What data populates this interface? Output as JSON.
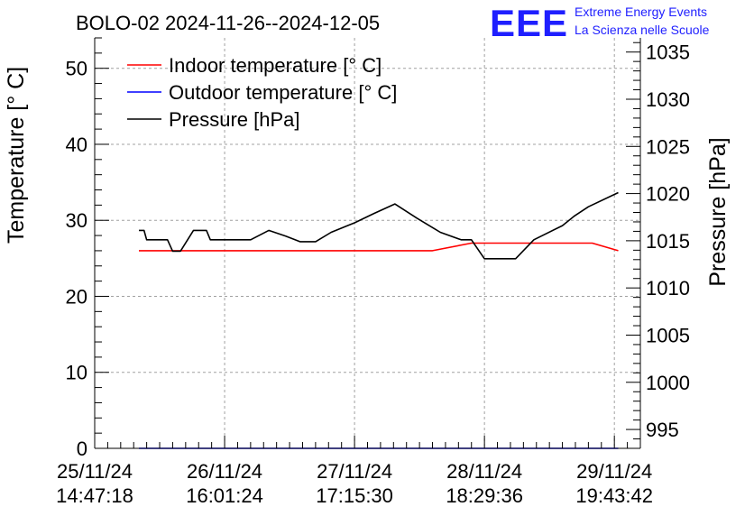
{
  "chart_data": {
    "type": "line",
    "title": "BOLO-02 2024-11-26--2024-12-05",
    "brand": {
      "logo_text": "EEE",
      "line1": "Extreme Energy Events",
      "line2": "La Scienza nelle Scuole",
      "color": "#1f1fff"
    },
    "ylabel": "Temperature [° C]",
    "ylabel_right": "Pressure [hPa]",
    "ylim": [
      0,
      54
    ],
    "ylim_right": [
      993,
      1036.5
    ],
    "y_ticks": [
      0,
      10,
      20,
      30,
      40,
      50
    ],
    "y_ticks_right": [
      995,
      1000,
      1005,
      1010,
      1015,
      1020,
      1025,
      1030,
      1035
    ],
    "xlim": [
      0,
      4.2
    ],
    "x_ticks": [
      0,
      1,
      2,
      3,
      4
    ],
    "x_tick_labels": [
      {
        "date": "25/11/24",
        "time": "14:47:18"
      },
      {
        "date": "26/11/24",
        "time": "16:01:24"
      },
      {
        "date": "27/11/24",
        "time": "17:15:30"
      },
      {
        "date": "28/11/24",
        "time": "18:29:36"
      },
      {
        "date": "29/11/24",
        "time": "19:43:42"
      }
    ],
    "grid": true,
    "legend_position": "top-left",
    "series": [
      {
        "name": "Indoor temperature [° C]",
        "color": "#ff0000",
        "axis": "left",
        "x": [
          0.34,
          0.5,
          1.0,
          1.5,
          2.0,
          2.5,
          2.6,
          2.9,
          3.3,
          3.6,
          3.83,
          4.03
        ],
        "values": [
          26,
          26,
          26,
          26,
          26,
          26,
          26,
          27,
          27,
          27,
          27,
          26
        ]
      },
      {
        "name": "Outdoor temperature [° C]",
        "color": "#0000ff",
        "axis": "left",
        "x": [
          0.34,
          4.03
        ],
        "values": [
          0,
          0
        ]
      },
      {
        "name": "Pressure [hPa]",
        "color": "#000000",
        "axis": "right",
        "x": [
          0.34,
          0.38,
          0.4,
          0.56,
          0.6,
          0.66,
          0.76,
          0.86,
          0.89,
          1.0,
          1.2,
          1.34,
          1.47,
          1.58,
          1.7,
          1.82,
          2.0,
          2.15,
          2.31,
          2.48,
          2.66,
          2.82,
          2.9,
          3.0,
          3.1,
          3.17,
          3.24,
          3.38,
          3.6,
          3.69,
          3.8,
          4.03
        ],
        "values": [
          1016.1,
          1016.1,
          1015.1,
          1015.1,
          1013.9,
          1013.9,
          1016.1,
          1016.1,
          1015.1,
          1015.1,
          1015.1,
          1016.1,
          1015.5,
          1014.9,
          1014.9,
          1015.9,
          1016.9,
          1017.9,
          1018.9,
          1017.4,
          1015.9,
          1015.1,
          1015.1,
          1013.1,
          1013.1,
          1013.1,
          1013.1,
          1015.1,
          1016.6,
          1017.6,
          1018.6,
          1020.1
        ]
      }
    ]
  }
}
